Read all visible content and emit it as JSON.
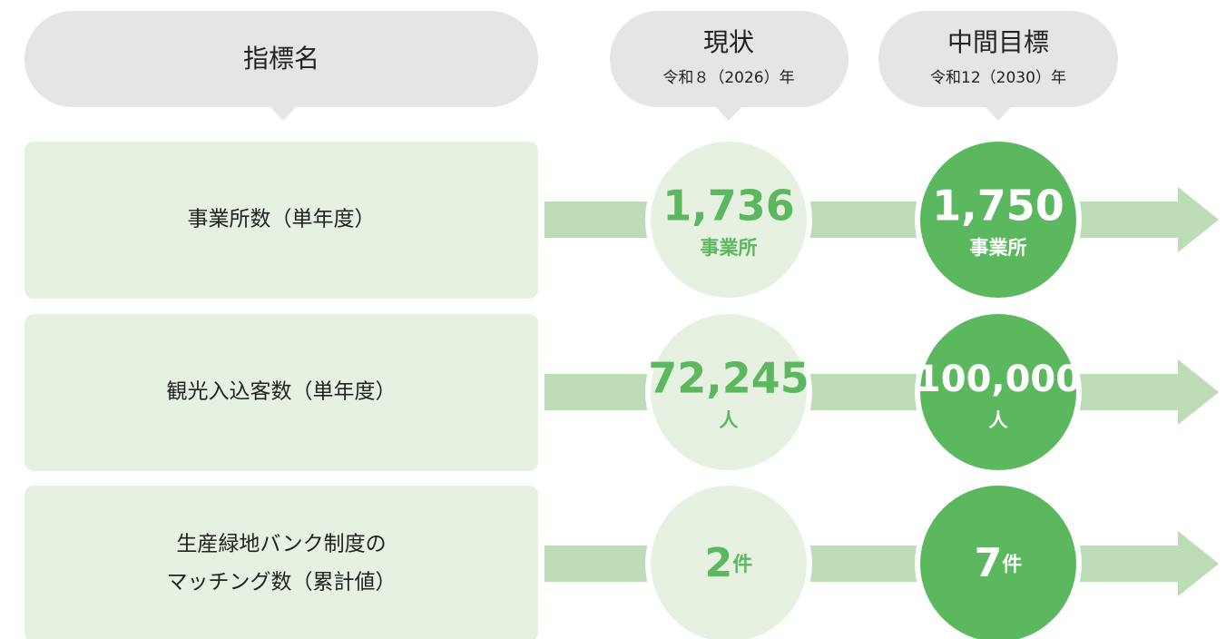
{
  "headers": {
    "indicator": "指標名",
    "current": {
      "title": "現状",
      "subtitle": "令和８（2026）年"
    },
    "target": {
      "title": "中間目標",
      "subtitle": "令和12（2030）年"
    }
  },
  "rows": [
    {
      "label": [
        "事業所数（単年度）"
      ],
      "current": {
        "value": "1,736",
        "unit": "事業所"
      },
      "target": {
        "value": "1,750",
        "unit": "事業所"
      }
    },
    {
      "label": [
        "観光入込客数（単年度）"
      ],
      "current": {
        "value": "72,245",
        "unit": "人"
      },
      "target": {
        "value": "100,000",
        "unit": "人"
      }
    },
    {
      "label": [
        "生産緑地バンク制度の",
        "マッチング数（累計値）"
      ],
      "current": {
        "value": "2",
        "unit": "件",
        "inline": true
      },
      "target": {
        "value": "7",
        "unit": "件",
        "inline": true
      }
    }
  ]
}
